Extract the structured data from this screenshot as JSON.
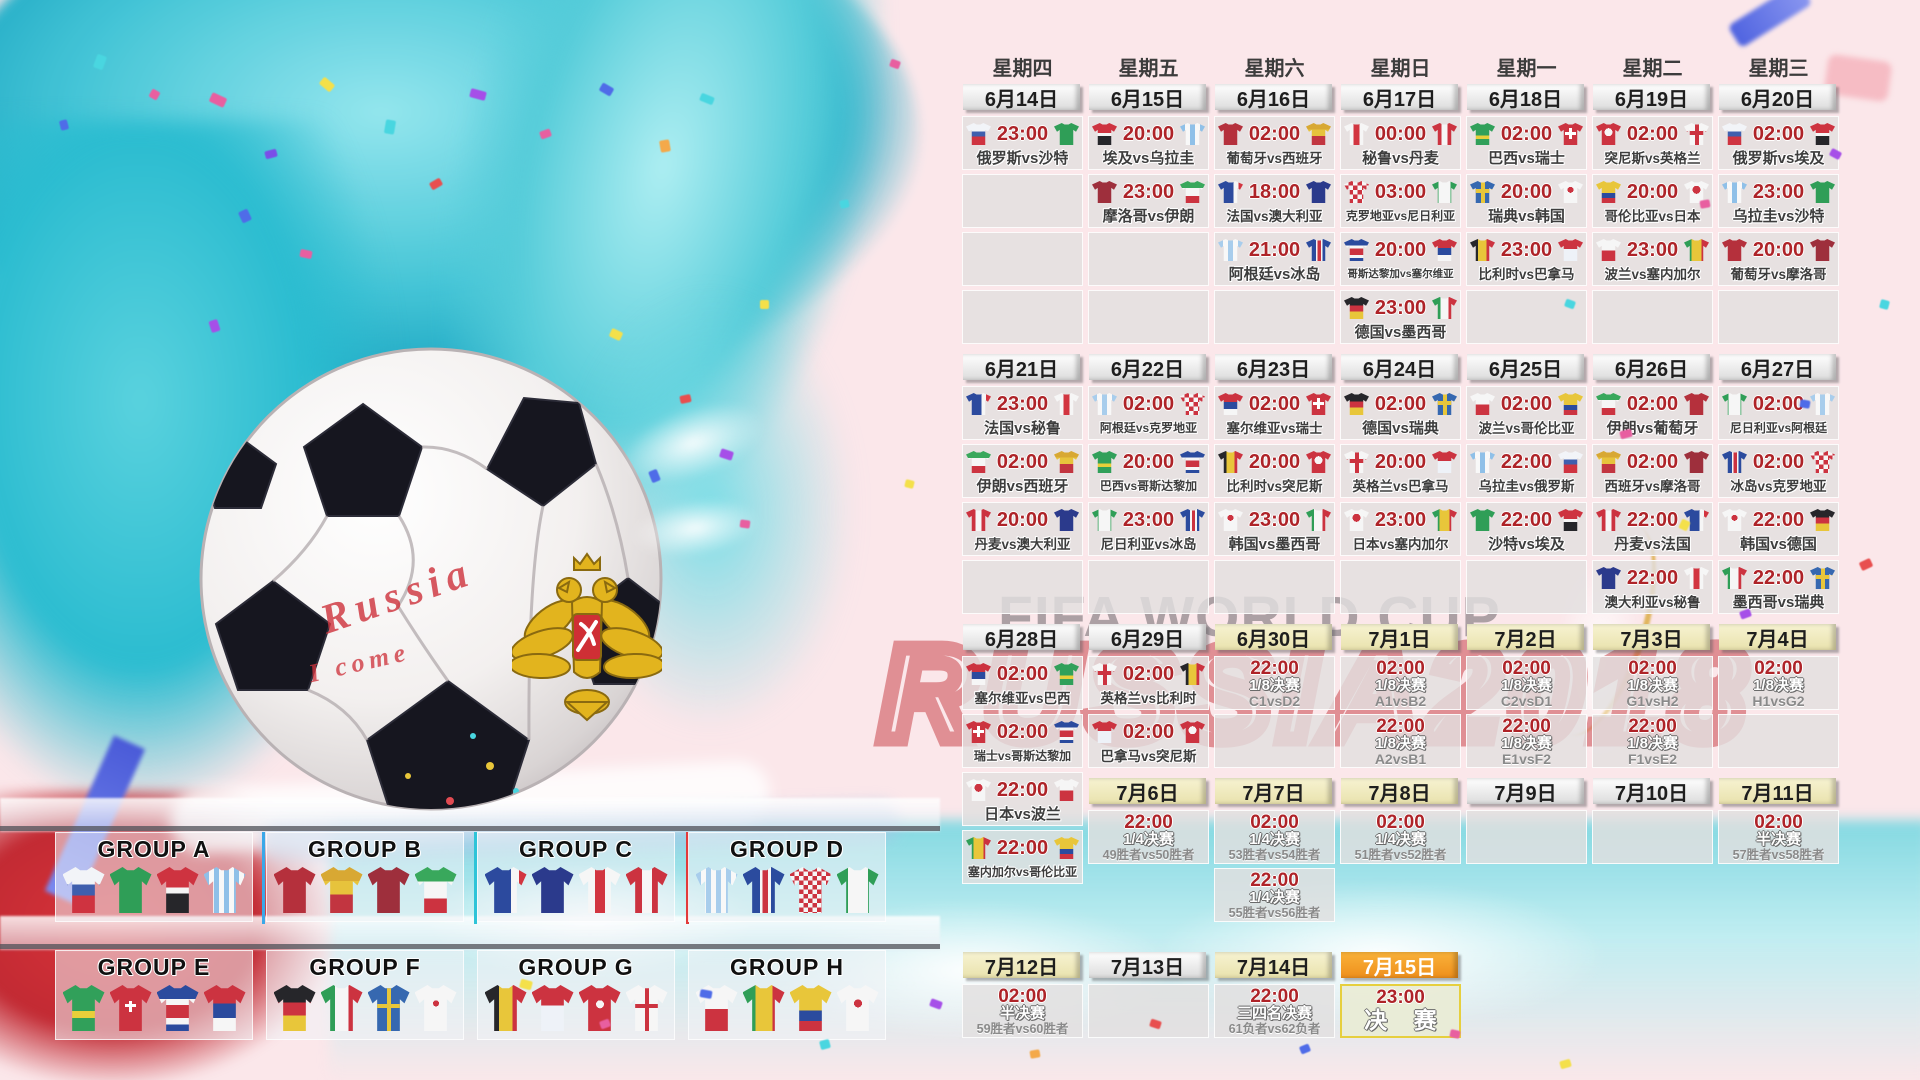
{
  "poster": {
    "watermark_line1": "FIFA WORLD CUP",
    "watermark_line2": "RUSSIA2018",
    "ball_text_line1": "Russia",
    "ball_text_line2": "I come"
  },
  "colors": {
    "background_pink": "#fbe7ea",
    "time_red": "#ae2328",
    "header_tan": "#f2ecc2",
    "header_orange": "#f49b2a",
    "final_border_yellow": "#e6cf3e",
    "teal_splash": "#3cc4d6"
  },
  "kits": {
    "俄罗斯": "linear-gradient(180deg,#f2f4f8 0 38%,#3f5fae 38% 62%,#cf3340 62%)",
    "沙特": "#2f9e57",
    "埃及": "linear-gradient(180deg,#ce3340 0 45%,#f5f5f5 45% 58%,#26262a 58%)",
    "乌拉圭": "repeating-linear-gradient(90deg,#8fc0e8 0 5px,#f8f8f8 5px 10px)",
    "葡萄牙": "#b5303c",
    "西班牙": "linear-gradient(180deg,#d8a833 0 30%,#e7c33c 30% 60%,#c23540 60%)",
    "摩洛哥": "#9e2f3c",
    "伊朗": "linear-gradient(180deg,#39a85c 0 32%,#f6f6f6 32% 68%,#cc3340 68%)",
    "法国": "linear-gradient(90deg,#2c4a9e 0 62%,#f6f6f6 62% 81%,#d23540 81%)",
    "澳大利亚": "#2b3a8c",
    "秘鲁": "linear-gradient(90deg,#f6f6f6 0 38%,#d23540 38% 62%,#f6f6f6 62%)",
    "丹麦": "linear-gradient(90deg,#cc3340 0 38%,#f6f6f6 38% 62%,#cc3340 62%)",
    "阿根廷": "repeating-linear-gradient(90deg,#a8cdec 0 5px,#f8f8f8 5px 10px)",
    "冰岛": "linear-gradient(90deg,#2b4b9e 0 40%,#f6f6f6 40% 47%,#cc3340 47% 60%,#f6f6f6 60% 67%,#2b4b9e 67%)",
    "克罗地亚": "repeating-conic-gradient(#cc3340 0 25%,#f6f6f6 0 50%) 0 0/9px 9px",
    "尼日利亚": "linear-gradient(90deg,#2f9e57 0 26%,#f6f6f6 26% 74%,#2f9e57 74%)",
    "巴西": "linear-gradient(180deg,#31a05a 0 56%,#e8cf3a 56% 72%,#31a05a 72%)",
    "瑞士": "linear-gradient(#fff,#fff) 50% 45%/3px 11px no-repeat,linear-gradient(#fff,#fff) 50% 45%/11px 3px no-repeat,#cc3340",
    "哥斯达黎加": "linear-gradient(180deg,#2b4b9e 0 30%,#f6f6f6 30% 44%,#cc3340 44% 72%,#f6f6f6 72% 86%,#2b4b9e 86%)",
    "塞尔维亚": "linear-gradient(180deg,#cc3340 0 40%,#2b4b9e 40% 72%,#f6f6f6 72%)",
    "德国": "linear-gradient(180deg,#26262a 0 38%,#cc3340 38% 66%,#e8c63a 66%)",
    "墨西哥": "linear-gradient(90deg,#2f9e57 0 33%,#f6f6f6 33% 66%,#cc3340 66%)",
    "瑞典": "linear-gradient(#e8c63a,#e8c63a) 50% 50%/4px 100% no-repeat,linear-gradient(#e8c63a,#e8c63a) 50% 45%/100% 4px no-repeat,#3668b0",
    "韩国": "radial-gradient(circle at 50% 40%,#cc3340 0 3px,rgba(0,0,0,0) 3px),#f6f6f6",
    "比利时": "linear-gradient(90deg,#26262a 0 33%,#e8c63a 33% 66%,#cc3340 66%)",
    "巴拿马": "linear-gradient(180deg,#cc3340 0 45%,#eef2f8 45%)",
    "突尼斯": "radial-gradient(circle at 50% 42%,#f6f6f6 0 4px,rgba(0,0,0,0) 4px),#cc3340",
    "英格兰": "linear-gradient(#cc3340,#cc3340) 50% 50%/4px 100% no-repeat,linear-gradient(#cc3340,#cc3340) 50% 45%/100% 4px no-repeat,#f6f6f6",
    "波兰": "linear-gradient(180deg,#f6f6f6 0 52%,#cc3340 52%)",
    "塞内加尔": "linear-gradient(90deg,#2f9e57 0 30%,#e8c63a 30% 70%,#cc3340 70%)",
    "哥伦比亚": "linear-gradient(180deg,#e8c63a 0 55%,#2b4b9e 55% 78%,#cc3340 78%)",
    "日本": "radial-gradient(circle at 50% 40%,#cc3340 0 4px,rgba(0,0,0,0) 4px),#f6f6f6"
  },
  "calendar": {
    "columns": [
      {
        "weekday": "星期四",
        "sections": [
          {
            "date": "6月14日",
            "tone": "plain",
            "cells": [
              {
                "t": "m",
                "time": "23:00",
                "home": "俄罗斯",
                "away": "沙特"
              },
              {
                "t": "e"
              },
              {
                "t": "e"
              },
              {
                "t": "e"
              }
            ]
          },
          {
            "date": "6月21日",
            "tone": "plain",
            "cells": [
              {
                "t": "m",
                "time": "23:00",
                "home": "法国",
                "away": "秘鲁"
              },
              {
                "t": "m",
                "time": "02:00",
                "home": "伊朗",
                "away": "西班牙"
              },
              {
                "t": "m",
                "time": "20:00",
                "home": "丹麦",
                "away": "澳大利亚"
              },
              {
                "t": "e"
              }
            ]
          },
          {
            "date": "6月28日",
            "tone": "plain",
            "cells": [
              {
                "t": "m",
                "time": "02:00",
                "home": "塞尔维亚",
                "away": "巴西"
              },
              {
                "t": "m",
                "time": "02:00",
                "home": "瑞士",
                "away": "哥斯达黎加"
              },
              {
                "t": "m",
                "time": "22:00",
                "home": "日本",
                "away": "波兰"
              },
              {
                "t": "m",
                "time": "22:00",
                "home": "塞内加尔",
                "away": "哥伦比亚"
              }
            ]
          },
          {
            "date": "7月12日",
            "tone": "tan",
            "bottom": true,
            "cells": [
              {
                "t": "k",
                "time": "02:00",
                "stage": "半决赛",
                "teams": "59胜者vs60胜者"
              }
            ]
          }
        ]
      },
      {
        "weekday": "星期五",
        "sections": [
          {
            "date": "6月15日",
            "tone": "plain",
            "cells": [
              {
                "t": "m",
                "time": "20:00",
                "home": "埃及",
                "away": "乌拉圭"
              },
              {
                "t": "m",
                "time": "23:00",
                "home": "摩洛哥",
                "away": "伊朗"
              },
              {
                "t": "e"
              },
              {
                "t": "e"
              }
            ]
          },
          {
            "date": "6月22日",
            "tone": "plain",
            "cells": [
              {
                "t": "m",
                "time": "02:00",
                "home": "阿根廷",
                "away": "克罗地亚"
              },
              {
                "t": "m",
                "time": "20:00",
                "home": "巴西",
                "away": "哥斯达黎加"
              },
              {
                "t": "m",
                "time": "23:00",
                "home": "尼日利亚",
                "away": "冰岛"
              },
              {
                "t": "e"
              }
            ]
          },
          {
            "date": "6月29日",
            "tone": "plain",
            "cells": [
              {
                "t": "m",
                "time": "02:00",
                "home": "英格兰",
                "away": "比利时"
              },
              {
                "t": "m",
                "time": "02:00",
                "home": "巴拿马",
                "away": "突尼斯"
              }
            ]
          },
          {
            "date": "7月6日",
            "tone": "tan",
            "cells": [
              {
                "t": "k",
                "time": "22:00",
                "stage": "1/4决赛",
                "teams": "49胜者vs50胜者"
              }
            ]
          },
          {
            "date": "7月13日",
            "tone": "plain",
            "bottom": true,
            "cells": [
              {
                "t": "e"
              }
            ]
          }
        ]
      },
      {
        "weekday": "星期六",
        "sections": [
          {
            "date": "6月16日",
            "tone": "plain",
            "cells": [
              {
                "t": "m",
                "time": "02:00",
                "home": "葡萄牙",
                "away": "西班牙"
              },
              {
                "t": "m",
                "time": "18:00",
                "home": "法国",
                "away": "澳大利亚"
              },
              {
                "t": "m",
                "time": "21:00",
                "home": "阿根廷",
                "away": "冰岛"
              },
              {
                "t": "e"
              }
            ]
          },
          {
            "date": "6月23日",
            "tone": "plain",
            "cells": [
              {
                "t": "m",
                "time": "02:00",
                "home": "塞尔维亚",
                "away": "瑞士"
              },
              {
                "t": "m",
                "time": "20:00",
                "home": "比利时",
                "away": "突尼斯"
              },
              {
                "t": "m",
                "time": "23:00",
                "home": "韩国",
                "away": "墨西哥"
              },
              {
                "t": "e"
              }
            ]
          },
          {
            "date": "6月30日",
            "tone": "tan",
            "cells": [
              {
                "t": "k",
                "time": "22:00",
                "stage": "1/8决赛",
                "teams": "C1vsD2"
              },
              {
                "t": "e"
              }
            ]
          },
          {
            "date": "7月7日",
            "tone": "tan",
            "cells": [
              {
                "t": "k",
                "time": "02:00",
                "stage": "1/4决赛",
                "teams": "53胜者vs54胜者"
              },
              {
                "t": "k",
                "time": "22:00",
                "stage": "1/4决赛",
                "teams": "55胜者vs56胜者"
              }
            ]
          },
          {
            "date": "7月14日",
            "tone": "tan",
            "bottom": true,
            "cells": [
              {
                "t": "k",
                "time": "22:00",
                "stage": "三四名决赛",
                "teams": "61负者vs62负者"
              }
            ]
          }
        ]
      },
      {
        "weekday": "星期日",
        "sections": [
          {
            "date": "6月17日",
            "tone": "plain",
            "cells": [
              {
                "t": "m",
                "time": "00:00",
                "home": "秘鲁",
                "away": "丹麦"
              },
              {
                "t": "m",
                "time": "03:00",
                "home": "克罗地亚",
                "away": "尼日利亚"
              },
              {
                "t": "m",
                "time": "20:00",
                "home": "哥斯达黎加",
                "away": "塞尔维亚"
              },
              {
                "t": "m",
                "time": "23:00",
                "home": "德国",
                "away": "墨西哥"
              }
            ]
          },
          {
            "date": "6月24日",
            "tone": "plain",
            "cells": [
              {
                "t": "m",
                "time": "02:00",
                "home": "德国",
                "away": "瑞典"
              },
              {
                "t": "m",
                "time": "20:00",
                "home": "英格兰",
                "away": "巴拿马"
              },
              {
                "t": "m",
                "time": "23:00",
                "home": "日本",
                "away": "塞内加尔"
              },
              {
                "t": "e"
              }
            ]
          },
          {
            "date": "7月1日",
            "tone": "tan",
            "cells": [
              {
                "t": "k",
                "time": "02:00",
                "stage": "1/8决赛",
                "teams": "A1vsB2"
              },
              {
                "t": "k",
                "time": "22:00",
                "stage": "1/8决赛",
                "teams": "A2vsB1"
              }
            ]
          },
          {
            "date": "7月8日",
            "tone": "tan",
            "cells": [
              {
                "t": "k",
                "time": "02:00",
                "stage": "1/4决赛",
                "teams": "51胜者vs52胜者"
              }
            ]
          },
          {
            "date": "7月15日",
            "tone": "orange",
            "bottom": true,
            "cells": [
              {
                "t": "f",
                "time": "23:00",
                "stage": "决 赛"
              }
            ]
          }
        ]
      },
      {
        "weekday": "星期一",
        "sections": [
          {
            "date": "6月18日",
            "tone": "plain",
            "cells": [
              {
                "t": "m",
                "time": "02:00",
                "home": "巴西",
                "away": "瑞士"
              },
              {
                "t": "m",
                "time": "20:00",
                "home": "瑞典",
                "away": "韩国"
              },
              {
                "t": "m",
                "time": "23:00",
                "home": "比利时",
                "away": "巴拿马"
              },
              {
                "t": "e"
              }
            ]
          },
          {
            "date": "6月25日",
            "tone": "plain",
            "cells": [
              {
                "t": "m",
                "time": "02:00",
                "home": "波兰",
                "away": "哥伦比亚"
              },
              {
                "t": "m",
                "time": "22:00",
                "home": "乌拉圭",
                "away": "俄罗斯"
              },
              {
                "t": "m",
                "time": "22:00",
                "home": "沙特",
                "away": "埃及"
              },
              {
                "t": "e"
              }
            ]
          },
          {
            "date": "7月2日",
            "tone": "tan",
            "cells": [
              {
                "t": "k",
                "time": "02:00",
                "stage": "1/8决赛",
                "teams": "C2vsD1"
              },
              {
                "t": "k",
                "time": "22:00",
                "stage": "1/8决赛",
                "teams": "E1vsF2"
              }
            ]
          },
          {
            "date": "7月9日",
            "tone": "plain",
            "cells": [
              {
                "t": "e"
              }
            ]
          }
        ]
      },
      {
        "weekday": "星期二",
        "sections": [
          {
            "date": "6月19日",
            "tone": "plain",
            "cells": [
              {
                "t": "m",
                "time": "02:00",
                "home": "突尼斯",
                "away": "英格兰"
              },
              {
                "t": "m",
                "time": "20:00",
                "home": "哥伦比亚",
                "away": "日本"
              },
              {
                "t": "m",
                "time": "23:00",
                "home": "波兰",
                "away": "塞内加尔"
              },
              {
                "t": "e"
              }
            ]
          },
          {
            "date": "6月26日",
            "tone": "plain",
            "cells": [
              {
                "t": "m",
                "time": "02:00",
                "home": "伊朗",
                "away": "葡萄牙"
              },
              {
                "t": "m",
                "time": "02:00",
                "home": "西班牙",
                "away": "摩洛哥"
              },
              {
                "t": "m",
                "time": "22:00",
                "home": "丹麦",
                "away": "法国"
              },
              {
                "t": "m",
                "time": "22:00",
                "home": "澳大利亚",
                "away": "秘鲁"
              }
            ]
          },
          {
            "date": "7月3日",
            "tone": "tan",
            "cells": [
              {
                "t": "k",
                "time": "02:00",
                "stage": "1/8决赛",
                "teams": "G1vsH2"
              },
              {
                "t": "k",
                "time": "22:00",
                "stage": "1/8决赛",
                "teams": "F1vsE2"
              }
            ]
          },
          {
            "date": "7月10日",
            "tone": "plain",
            "cells": [
              {
                "t": "e"
              }
            ]
          }
        ]
      },
      {
        "weekday": "星期三",
        "sections": [
          {
            "date": "6月20日",
            "tone": "plain",
            "cells": [
              {
                "t": "m",
                "time": "02:00",
                "home": "俄罗斯",
                "away": "埃及"
              },
              {
                "t": "m",
                "time": "23:00",
                "home": "乌拉圭",
                "away": "沙特"
              },
              {
                "t": "m",
                "time": "20:00",
                "home": "葡萄牙",
                "away": "摩洛哥"
              },
              {
                "t": "e"
              }
            ]
          },
          {
            "date": "6月27日",
            "tone": "plain",
            "cells": [
              {
                "t": "m",
                "time": "02:00",
                "home": "尼日利亚",
                "away": "阿根廷"
              },
              {
                "t": "m",
                "time": "02:00",
                "home": "冰岛",
                "away": "克罗地亚"
              },
              {
                "t": "m",
                "time": "22:00",
                "home": "韩国",
                "away": "德国"
              },
              {
                "t": "m",
                "time": "22:00",
                "home": "墨西哥",
                "away": "瑞典"
              }
            ]
          },
          {
            "date": "7月4日",
            "tone": "tan",
            "cells": [
              {
                "t": "k",
                "time": "02:00",
                "stage": "1/8决赛",
                "teams": "H1vsG2"
              },
              {
                "t": "e"
              }
            ]
          },
          {
            "date": "7月11日",
            "tone": "tan",
            "cells": [
              {
                "t": "k",
                "time": "02:00",
                "stage": "半决赛",
                "teams": "57胜者vs58胜者"
              }
            ]
          }
        ]
      }
    ]
  },
  "groups": [
    {
      "label": "GROUP A",
      "teams": [
        "俄罗斯",
        "沙特",
        "埃及",
        "乌拉圭"
      ]
    },
    {
      "label": "GROUP B",
      "teams": [
        "葡萄牙",
        "西班牙",
        "摩洛哥",
        "伊朗"
      ]
    },
    {
      "label": "GROUP C",
      "teams": [
        "法国",
        "澳大利亚",
        "秘鲁",
        "丹麦"
      ]
    },
    {
      "label": "GROUP D",
      "teams": [
        "阿根廷",
        "冰岛",
        "克罗地亚",
        "尼日利亚"
      ]
    },
    {
      "label": "GROUP E",
      "teams": [
        "巴西",
        "瑞士",
        "哥斯达黎加",
        "塞尔维亚"
      ]
    },
    {
      "label": "GROUP F",
      "teams": [
        "德国",
        "墨西哥",
        "瑞典",
        "韩国"
      ]
    },
    {
      "label": "GROUP G",
      "teams": [
        "比利时",
        "巴拿马",
        "突尼斯",
        "英格兰"
      ]
    },
    {
      "label": "GROUP H",
      "teams": [
        "波兰",
        "塞内加尔",
        "哥伦比亚",
        "日本"
      ]
    }
  ]
}
